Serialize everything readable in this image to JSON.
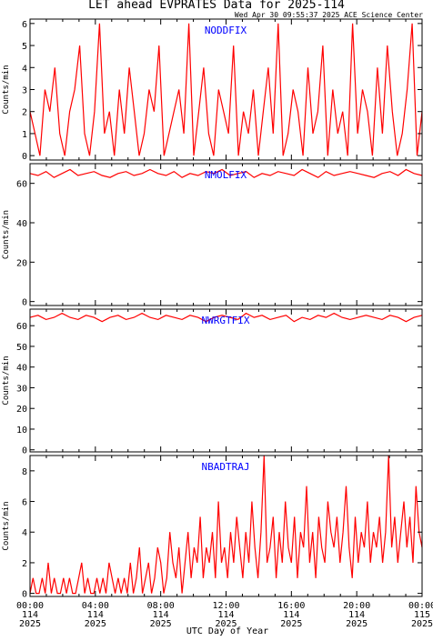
{
  "title": "LET ahead EVPRATES Data for 2025-114",
  "timestamp": "Wed Apr 30 09:55:37 2025 ACE Science Center",
  "xlabel": "UTC Day of Year",
  "x_ticks": [
    {
      "time": "00:00",
      "doy": "114",
      "year": "2025"
    },
    {
      "time": "04:00",
      "doy": "114",
      "year": "2025"
    },
    {
      "time": "08:00",
      "doy": "114",
      "year": "2025"
    },
    {
      "time": "12:00",
      "doy": "114",
      "year": "2025"
    },
    {
      "time": "16:00",
      "doy": "114",
      "year": "2025"
    },
    {
      "time": "20:00",
      "doy": "114",
      "year": "2025"
    },
    {
      "time": "00:00",
      "doy": "115",
      "year": "2025"
    }
  ],
  "colors": {
    "line": "#ff0000",
    "panel_label": "#0000ff",
    "axis": "#000000"
  },
  "chart_data": [
    {
      "type": "line",
      "label": "NODDFIX",
      "ylabel": "Counts/min",
      "ylim": [
        -0.2,
        6.2
      ],
      "y_ticks": [
        0,
        1,
        2,
        3,
        4,
        5,
        6
      ],
      "x_range_hours": [
        0,
        24
      ],
      "series": [
        {
          "name": "NODDFIX",
          "summary": "noisy integer counts, mostly 0-3, frequent spikes to 4-6",
          "values": [
            2,
            1,
            0,
            3,
            2,
            4,
            1,
            0,
            2,
            3,
            5,
            1,
            0,
            2,
            6,
            1,
            2,
            0,
            3,
            1,
            4,
            2,
            0,
            1,
            3,
            2,
            5,
            0,
            1,
            2,
            3,
            1,
            6,
            0,
            2,
            4,
            1,
            0,
            3,
            2,
            1,
            5,
            0,
            2,
            1,
            3,
            0,
            2,
            4,
            1,
            6,
            0,
            1,
            3,
            2,
            0,
            4,
            1,
            2,
            5,
            0,
            3,
            1,
            2,
            0,
            6,
            1,
            3,
            2,
            0,
            4,
            1,
            5,
            2,
            0,
            1,
            3,
            6,
            0,
            2
          ]
        }
      ]
    },
    {
      "type": "line",
      "label": "NMOLFIX",
      "ylabel": "Counts/min",
      "ylim": [
        -2,
        70
      ],
      "y_ticks": [
        0,
        20,
        40,
        60
      ],
      "x_range_hours": [
        0,
        24
      ],
      "series": [
        {
          "name": "NMOLFIX",
          "summary": "steady near 65 counts/min with small jitter",
          "values": [
            65,
            64,
            66,
            63,
            65,
            67,
            64,
            65,
            66,
            64,
            63,
            65,
            66,
            64,
            65,
            67,
            65,
            64,
            66,
            63,
            65,
            64,
            66,
            65,
            67,
            64,
            65,
            66,
            63,
            65,
            64,
            66,
            65,
            64,
            67,
            65,
            63,
            66,
            64,
            65,
            66,
            65,
            64,
            63,
            65,
            66,
            64,
            67,
            65,
            64
          ]
        }
      ]
    },
    {
      "type": "line",
      "label": "NWRGTFIX",
      "ylabel": "Counts/min",
      "ylim": [
        -1,
        68
      ],
      "y_ticks": [
        0,
        10,
        20,
        30,
        40,
        50,
        60
      ],
      "x_range_hours": [
        0,
        24
      ],
      "series": [
        {
          "name": "NWRGTFIX",
          "summary": "steady near 64 counts/min with small jitter",
          "values": [
            64,
            65,
            63,
            64,
            66,
            64,
            63,
            65,
            64,
            62,
            64,
            65,
            63,
            64,
            66,
            64,
            63,
            65,
            64,
            63,
            65,
            64,
            62,
            64,
            65,
            64,
            63,
            66,
            64,
            65,
            63,
            64,
            65,
            62,
            64,
            63,
            65,
            64,
            66,
            64,
            63,
            64,
            65,
            64,
            63,
            65,
            64,
            62,
            64,
            65
          ]
        }
      ]
    },
    {
      "type": "line",
      "label": "NBADTRAJ",
      "ylabel": "Counts/min",
      "ylim": [
        -0.2,
        9
      ],
      "y_ticks": [
        0,
        2,
        4,
        6,
        8
      ],
      "x_range_hours": [
        0,
        24
      ],
      "series": [
        {
          "name": "NBADTRAJ",
          "summary": "mostly 0-1 until ~10:00, rising noisy level 1-4 afterwards with spikes up to 9 near 15:30 and 22:30",
          "values": [
            0,
            1,
            0,
            0,
            1,
            0,
            2,
            0,
            1,
            0,
            0,
            1,
            0,
            1,
            0,
            0,
            1,
            2,
            0,
            1,
            0,
            0,
            1,
            0,
            1,
            0,
            2,
            1,
            0,
            1,
            0,
            1,
            0,
            2,
            0,
            1,
            3,
            0,
            1,
            2,
            0,
            1,
            3,
            2,
            0,
            1,
            4,
            2,
            1,
            3,
            0,
            2,
            4,
            1,
            3,
            2,
            5,
            1,
            3,
            2,
            4,
            1,
            6,
            2,
            3,
            1,
            4,
            2,
            5,
            3,
            1,
            4,
            2,
            6,
            3,
            1,
            4,
            9,
            2,
            3,
            5,
            1,
            4,
            2,
            6,
            3,
            2,
            5,
            1,
            4,
            3,
            7,
            2,
            4,
            1,
            5,
            3,
            2,
            6,
            4,
            3,
            5,
            2,
            4,
            7,
            3,
            1,
            5,
            2,
            4,
            3,
            6,
            2,
            4,
            3,
            5,
            2,
            4,
            9,
            3,
            5,
            2,
            4,
            6,
            3,
            5,
            2,
            7,
            4,
            3
          ]
        }
      ]
    }
  ]
}
